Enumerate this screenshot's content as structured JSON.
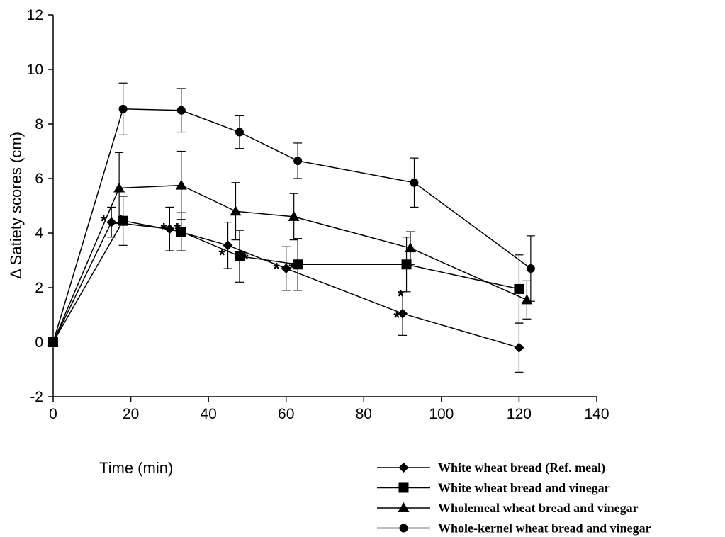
{
  "chart_data": {
    "type": "line",
    "xlabel": "Time (min)",
    "ylabel": "Δ Satiety scores (cm)",
    "xlim": [
      0,
      140
    ],
    "ylim": [
      -2,
      12
    ],
    "xticks": [
      0,
      20,
      40,
      60,
      80,
      100,
      120,
      140
    ],
    "yticks": [
      -2,
      0,
      2,
      4,
      6,
      8,
      10,
      12
    ],
    "grid": false,
    "legend_position": "bottom-right",
    "series": [
      {
        "name": "White wheat bread (Ref. meal)",
        "marker": "diamond",
        "x": [
          0,
          15,
          30,
          45,
          60,
          90,
          120
        ],
        "y": [
          0,
          4.4,
          4.15,
          3.55,
          2.7,
          1.05,
          -0.2
        ],
        "err": [
          0,
          0.55,
          0.8,
          0.85,
          0.8,
          0.8,
          0.9
        ]
      },
      {
        "name": "White wheat bread and vinegar",
        "marker": "square",
        "x": [
          0,
          18,
          33,
          48,
          63,
          91,
          120
        ],
        "y": [
          0,
          4.45,
          4.05,
          3.15,
          2.85,
          2.85,
          1.95
        ],
        "err": [
          0,
          0.9,
          0.7,
          0.95,
          0.95,
          1.0,
          1.25
        ]
      },
      {
        "name": "Wholemeal wheat bread and vinegar",
        "marker": "triangle",
        "x": [
          0,
          17,
          33,
          47,
          62,
          92,
          122
        ],
        "y": [
          0,
          5.65,
          5.75,
          4.8,
          4.6,
          3.45,
          1.55
        ],
        "err": [
          0,
          1.3,
          1.25,
          1.05,
          0.85,
          0.6,
          0.7
        ]
      },
      {
        "name": "Whole-kernel wheat bread and vinegar",
        "marker": "circle",
        "x": [
          0,
          18,
          33,
          48,
          63,
          93,
          123
        ],
        "y": [
          0,
          8.55,
          8.5,
          7.7,
          6.65,
          5.85,
          2.7
        ],
        "err": [
          0,
          0.95,
          0.8,
          0.6,
          0.65,
          0.9,
          1.2
        ]
      }
    ],
    "annotations": [
      {
        "text": "*",
        "x": 13,
        "y": 4.6
      },
      {
        "text": "*",
        "x": 17.5,
        "y": 4.6
      },
      {
        "text": "*",
        "x": 28.5,
        "y": 4.3
      },
      {
        "text": "*",
        "x": 32,
        "y": 4.3
      },
      {
        "text": "*",
        "x": 43.5,
        "y": 3.35
      },
      {
        "text": "*",
        "x": 49.5,
        "y": 3.2
      },
      {
        "text": "*",
        "x": 57.5,
        "y": 2.85
      },
      {
        "text": "*",
        "x": 61.5,
        "y": 2.85
      },
      {
        "text": "*",
        "x": 89.5,
        "y": 1.85
      },
      {
        "text": "*",
        "x": 88.5,
        "y": 1.05
      }
    ]
  }
}
